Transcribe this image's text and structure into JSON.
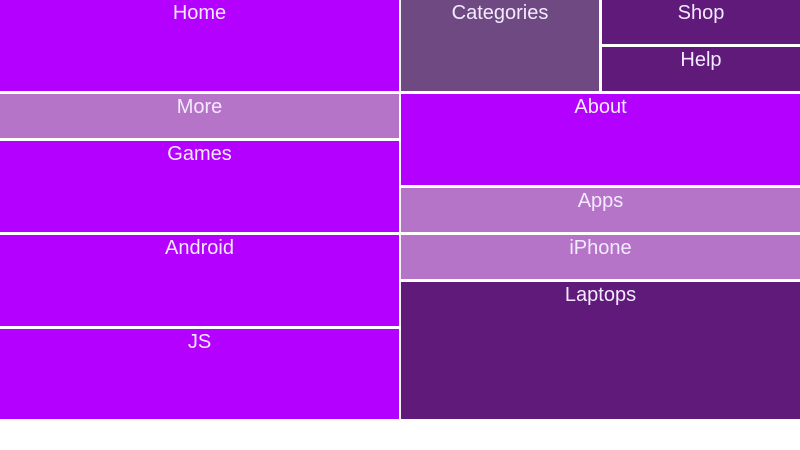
{
  "colors": {
    "bright": "#b400ff",
    "muted": "#6f4a82",
    "dark": "#5f1a7a",
    "light": "#b574c8"
  },
  "tiles": {
    "home": "Home",
    "categories": "Categories",
    "shop": "Shop",
    "help": "Help",
    "more": "More",
    "about": "About",
    "games": "Games",
    "apps": "Apps",
    "android": "Android",
    "iphone": "iPhone",
    "js": "JS",
    "laptops": "Laptops"
  }
}
